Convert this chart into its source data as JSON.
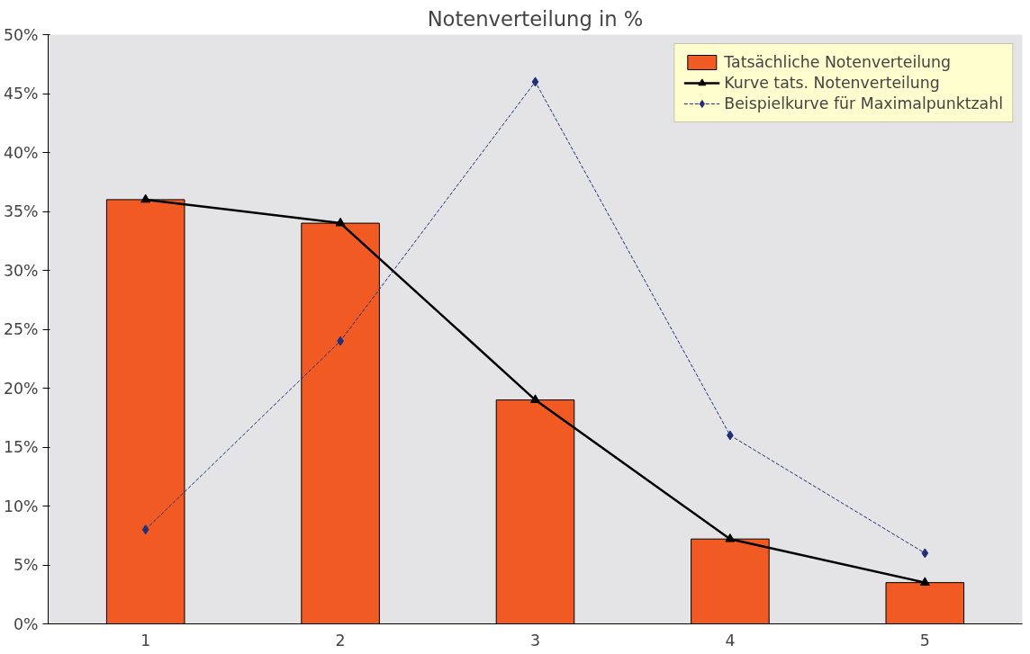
{
  "chart_data": {
    "type": "bar",
    "title": "Notenverteilung in %",
    "categories": [
      "1",
      "2",
      "3",
      "4",
      "5"
    ],
    "series": [
      {
        "name": "Tatsächliche Notenverteilung",
        "color": "#f15a22",
        "values": [
          36,
          34,
          19,
          7.2,
          3.5
        ]
      },
      {
        "name": "Kurve tats. Notenverteilung",
        "type": "line",
        "color": "#000000",
        "marker": "triangle",
        "line_style": "solid",
        "values": [
          36,
          34,
          19,
          7.2,
          3.5
        ]
      },
      {
        "name": "Beispielkurve für Maximalpunktzahl",
        "type": "line",
        "color": "#1f2f7a",
        "marker": "diamond",
        "line_style": "dashed",
        "values": [
          8,
          24,
          46,
          16,
          6
        ]
      }
    ],
    "ylim": [
      0,
      50
    ],
    "yticks": [
      {
        "value": 0,
        "label": "0%"
      },
      {
        "value": 5,
        "label": "5%"
      },
      {
        "value": 10,
        "label": "10%"
      },
      {
        "value": 15,
        "label": "15%"
      },
      {
        "value": 20,
        "label": "20%"
      },
      {
        "value": 25,
        "label": "25%"
      },
      {
        "value": 30,
        "label": "30%"
      },
      {
        "value": 35,
        "label": "35%"
      },
      {
        "value": 40,
        "label": "40%"
      },
      {
        "value": 45,
        "label": "45%"
      },
      {
        "value": 50,
        "label": "50%"
      }
    ],
    "legend": "top right"
  }
}
